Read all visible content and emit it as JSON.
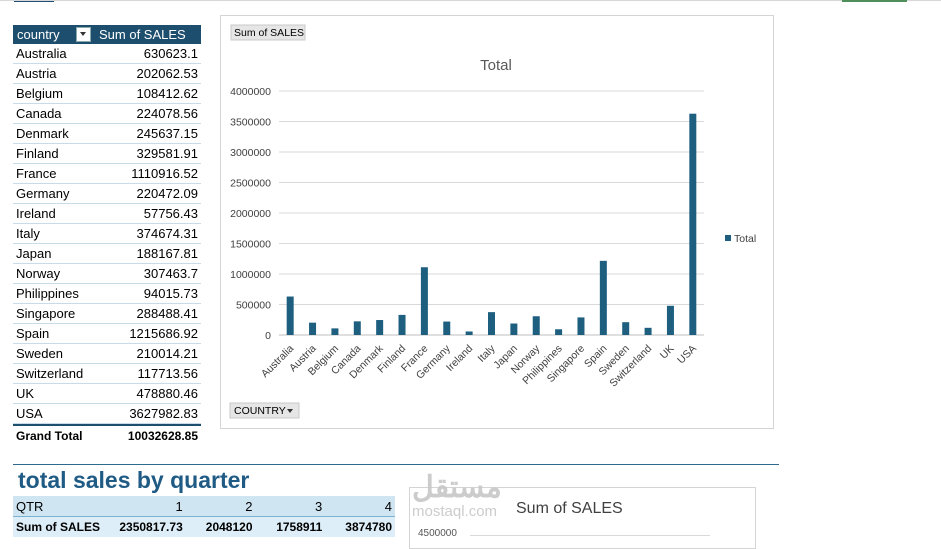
{
  "pivot": {
    "header_country": "country",
    "header_sum": "Sum of SALES",
    "rows": [
      {
        "country": "Australia",
        "value": "630623.1"
      },
      {
        "country": "Austria",
        "value": "202062.53"
      },
      {
        "country": "Belgium",
        "value": "108412.62"
      },
      {
        "country": "Canada",
        "value": "224078.56"
      },
      {
        "country": "Denmark",
        "value": "245637.15"
      },
      {
        "country": "Finland",
        "value": "329581.91"
      },
      {
        "country": "France",
        "value": "1110916.52"
      },
      {
        "country": "Germany",
        "value": "220472.09"
      },
      {
        "country": "Ireland",
        "value": "57756.43"
      },
      {
        "country": "Italy",
        "value": "374674.31"
      },
      {
        "country": "Japan",
        "value": "188167.81"
      },
      {
        "country": "Norway",
        "value": "307463.7"
      },
      {
        "country": "Philippines",
        "value": "94015.73"
      },
      {
        "country": "Singapore",
        "value": "288488.41"
      },
      {
        "country": "Spain",
        "value": "1215686.92"
      },
      {
        "country": "Sweden",
        "value": "210014.21"
      },
      {
        "country": "Switzerland",
        "value": "117713.56"
      },
      {
        "country": "UK",
        "value": "478880.46"
      },
      {
        "country": "USA",
        "value": "3627982.83"
      }
    ],
    "total_label": "Grand Total",
    "total_value": "10032628.85"
  },
  "chart_data": {
    "type": "bar",
    "title": "Total",
    "value_button": "Sum of SALES",
    "axis_button": "COUNTRY",
    "categories": [
      "Australia",
      "Austria",
      "Belgium",
      "Canada",
      "Denmark",
      "Finland",
      "France",
      "Germany",
      "Ireland",
      "Italy",
      "Japan",
      "Norway",
      "Philippines",
      "Singapore",
      "Spain",
      "Sweden",
      "Switzerland",
      "UK",
      "USA"
    ],
    "series": [
      {
        "name": "Total",
        "values": [
          630623.1,
          202062.53,
          108412.62,
          224078.56,
          245637.15,
          329581.91,
          1110916.52,
          220472.09,
          57756.43,
          374674.31,
          188167.81,
          307463.7,
          94015.73,
          288488.41,
          1215686.92,
          210014.21,
          117713.56,
          478880.46,
          3627982.83
        ]
      }
    ],
    "ylim": [
      0,
      4000000
    ],
    "yticks": [
      "0",
      "500000",
      "1000000",
      "1500000",
      "2000000",
      "2500000",
      "3000000",
      "3500000",
      "4000000"
    ],
    "grid": true,
    "legend": "right",
    "bar_color": "#1e5f80"
  },
  "quarter": {
    "title": "total sales by quarter",
    "header_label": "QTR",
    "quarters": [
      "1",
      "2",
      "3",
      "4"
    ],
    "sum_label": "Sum of SALES",
    "sums": [
      "2350817.73",
      "2048120",
      "1758911",
      "3874780"
    ]
  },
  "chart2": {
    "title": "Sum of SALES",
    "first_tick": "4500000"
  },
  "watermark": {
    "arabic": "مستقل",
    "latin": "mostaql.com"
  }
}
